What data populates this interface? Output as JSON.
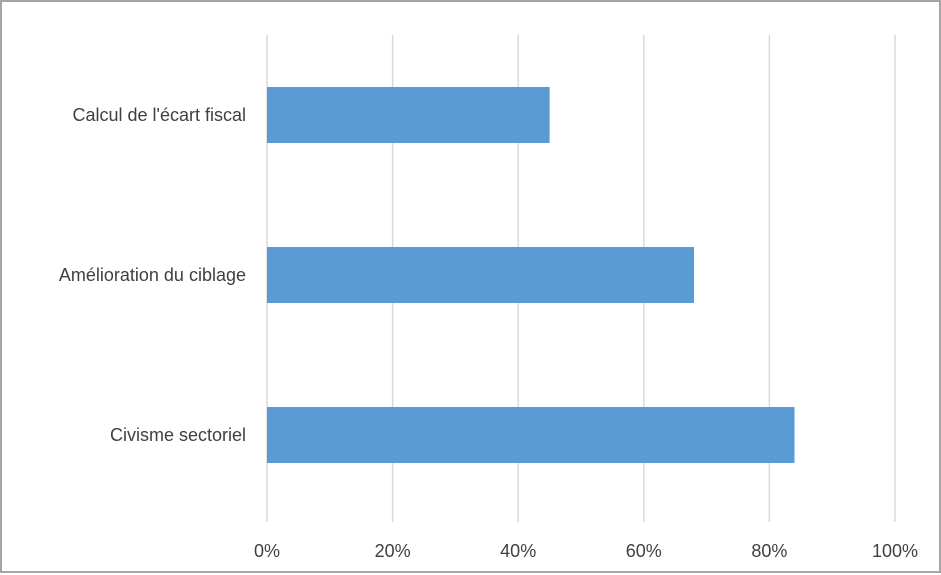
{
  "chart_data": {
    "type": "bar",
    "orientation": "horizontal",
    "categories": [
      "Calcul de l'écart fiscal",
      "Amélioration du ciblage",
      "Civisme sectoriel"
    ],
    "values": [
      45,
      68,
      84
    ],
    "title": "",
    "xlabel": "",
    "ylabel": "",
    "xlim": [
      0,
      100
    ],
    "ticks": [
      0,
      20,
      40,
      60,
      80,
      100
    ],
    "tick_labels": [
      "0%",
      "20%",
      "40%",
      "60%",
      "80%",
      "100%"
    ],
    "grid": true,
    "legend": "none",
    "bar_color": "#5b9bd5",
    "grid_color": "#d9d9d9",
    "border_color": "#a6a6a6"
  }
}
